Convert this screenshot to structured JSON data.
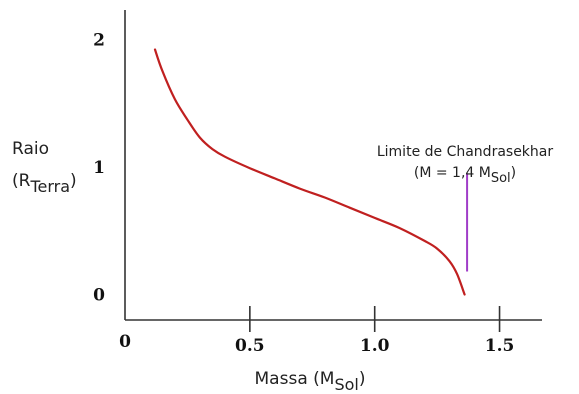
{
  "chart_data": {
    "type": "line",
    "title": "",
    "xlabel": {
      "main": "Massa (M",
      "sub": "Sol",
      "close": ")"
    },
    "ylabel": {
      "line1": "Raio",
      "line2_open": "(R",
      "line2_sub": "Terra",
      "line2_close": ")"
    },
    "xlim": [
      0,
      1.67
    ],
    "ylim": [
      -0.2,
      2.23
    ],
    "x_ticks": [
      {
        "value": 0.5,
        "label": "0.5"
      },
      {
        "value": 1.0,
        "label": "1.0"
      },
      {
        "value": 1.5,
        "label": "1.5"
      }
    ],
    "x_origin_label": "0",
    "y_ticks": [
      {
        "value": 0,
        "label": "0"
      },
      {
        "value": 1,
        "label": "1"
      },
      {
        "value": 2,
        "label": "2"
      }
    ],
    "series": [
      {
        "color": "#c02020",
        "x": [
          0.12,
          0.15,
          0.2,
          0.25,
          0.3,
          0.35,
          0.4,
          0.5,
          0.6,
          0.7,
          0.8,
          0.9,
          1.0,
          1.1,
          1.2,
          1.25,
          1.3,
          1.33,
          1.36
        ],
        "y": [
          1.92,
          1.75,
          1.53,
          1.37,
          1.23,
          1.14,
          1.08,
          0.99,
          0.91,
          0.83,
          0.76,
          0.68,
          0.6,
          0.52,
          0.42,
          0.36,
          0.26,
          0.16,
          0.0
        ]
      }
    ],
    "annotation": {
      "x": 1.37,
      "y_top": 0.95,
      "y_bottom": 0.18,
      "color": "#a03cc8",
      "line1": "Limite de Chandrasekhar",
      "line2_open": "(M = 1,4 M",
      "line2_sub": "Sol",
      "line2_close": ")"
    },
    "axis_color": "#333333",
    "grid": false
  }
}
